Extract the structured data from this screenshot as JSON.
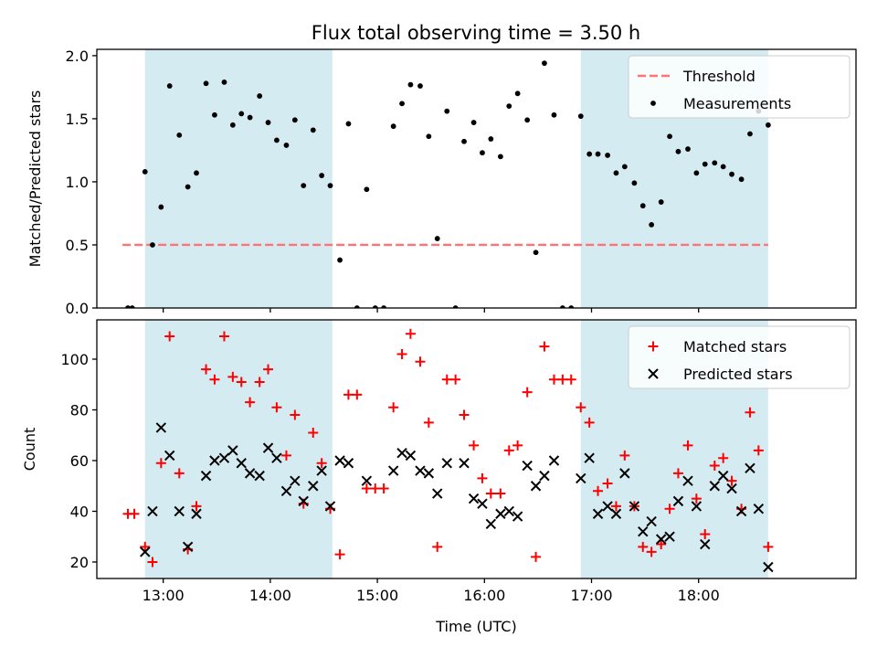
{
  "figure": {
    "title": "Flux total observing time = 3.50 h"
  },
  "chart_data": [
    {
      "type": "scatter",
      "panel": "top",
      "ylabel": "Matched/Predicted stars",
      "xlabel": "",
      "xlim": [
        12.38,
        19.47
      ],
      "ylim": [
        0.0,
        2.05
      ],
      "yticks": [
        0.0,
        0.5,
        1.0,
        1.5,
        2.0
      ],
      "ytick_labels": [
        "0.0",
        "0.5",
        "1.0",
        "1.5",
        "2.0"
      ],
      "xticks": [
        13,
        14,
        15,
        16,
        17,
        18
      ],
      "shaded_intervals": [
        [
          12.83,
          14.58
        ],
        [
          16.9,
          18.65
        ]
      ],
      "shade_color": "#add8e6",
      "legend": {
        "position": "upper right",
        "entries": [
          "Threshold",
          "Measurements"
        ]
      },
      "threshold": {
        "name": "Threshold",
        "y": 0.5,
        "x_range": [
          12.62,
          18.65
        ],
        "color": "#ff7373",
        "style": "dashed"
      },
      "series": [
        {
          "name": "Measurements",
          "color": "#000000",
          "marker": "dot",
          "points": [
            [
              12.67,
              0.0
            ],
            [
              12.71,
              0.0
            ],
            [
              12.83,
              1.08
            ],
            [
              12.9,
              0.5
            ],
            [
              12.98,
              0.8
            ],
            [
              13.06,
              1.76
            ],
            [
              13.15,
              1.37
            ],
            [
              13.23,
              0.96
            ],
            [
              13.31,
              1.07
            ],
            [
              13.4,
              1.78
            ],
            [
              13.48,
              1.53
            ],
            [
              13.57,
              1.79
            ],
            [
              13.65,
              1.45
            ],
            [
              13.73,
              1.54
            ],
            [
              13.81,
              1.51
            ],
            [
              13.9,
              1.68
            ],
            [
              13.98,
              1.47
            ],
            [
              14.06,
              1.33
            ],
            [
              14.15,
              1.29
            ],
            [
              14.23,
              1.49
            ],
            [
              14.31,
              0.97
            ],
            [
              14.4,
              1.41
            ],
            [
              14.48,
              1.05
            ],
            [
              14.56,
              0.97
            ],
            [
              14.65,
              0.38
            ],
            [
              14.73,
              1.46
            ],
            [
              14.81,
              0.0
            ],
            [
              14.9,
              0.94
            ],
            [
              14.98,
              0.0
            ],
            [
              15.06,
              0.0
            ],
            [
              15.15,
              1.44
            ],
            [
              15.23,
              1.62
            ],
            [
              15.31,
              1.77
            ],
            [
              15.4,
              1.76
            ],
            [
              15.48,
              1.36
            ],
            [
              15.56,
              0.55
            ],
            [
              15.65,
              1.56
            ],
            [
              15.73,
              0.0
            ],
            [
              15.81,
              1.32
            ],
            [
              15.9,
              1.47
            ],
            [
              15.98,
              1.23
            ],
            [
              16.06,
              1.34
            ],
            [
              16.15,
              1.2
            ],
            [
              16.23,
              1.6
            ],
            [
              16.31,
              1.7
            ],
            [
              16.4,
              1.49
            ],
            [
              16.48,
              0.44
            ],
            [
              16.56,
              1.94
            ],
            [
              16.65,
              1.53
            ],
            [
              16.73,
              0.0
            ],
            [
              16.81,
              0.0
            ],
            [
              16.9,
              1.52
            ],
            [
              16.98,
              1.22
            ],
            [
              17.06,
              1.22
            ],
            [
              17.15,
              1.21
            ],
            [
              17.23,
              1.07
            ],
            [
              17.31,
              1.12
            ],
            [
              17.4,
              0.99
            ],
            [
              17.48,
              0.81
            ],
            [
              17.56,
              0.66
            ],
            [
              17.65,
              0.84
            ],
            [
              17.73,
              1.36
            ],
            [
              17.81,
              1.24
            ],
            [
              17.9,
              1.26
            ],
            [
              17.98,
              1.07
            ],
            [
              18.06,
              1.14
            ],
            [
              18.15,
              1.15
            ],
            [
              18.23,
              1.12
            ],
            [
              18.31,
              1.06
            ],
            [
              18.4,
              1.02
            ],
            [
              18.48,
              1.38
            ],
            [
              18.56,
              1.56
            ],
            [
              18.65,
              1.45
            ]
          ]
        }
      ]
    },
    {
      "type": "scatter",
      "panel": "bottom",
      "ylabel": "Count",
      "xlabel": "Time (UTC)",
      "xlim": [
        12.38,
        19.47
      ],
      "ylim": [
        13.5,
        115.5
      ],
      "yticks": [
        20,
        40,
        60,
        80,
        100
      ],
      "ytick_labels": [
        "20",
        "40",
        "60",
        "80",
        "100"
      ],
      "xticks": [
        13,
        14,
        15,
        16,
        17,
        18
      ],
      "xtick_labels": [
        "13:00",
        "14:00",
        "15:00",
        "16:00",
        "17:00",
        "18:00"
      ],
      "shaded_intervals": [
        [
          12.83,
          14.58
        ],
        [
          16.9,
          18.65
        ]
      ],
      "shade_color": "#add8e6",
      "legend": {
        "position": "upper right",
        "entries": [
          "Matched stars",
          "Predicted stars"
        ]
      },
      "series": [
        {
          "name": "Matched stars",
          "color": "#ff0000",
          "marker": "plus",
          "points": [
            [
              12.67,
              39
            ],
            [
              12.73,
              39
            ],
            [
              12.83,
              26
            ],
            [
              12.9,
              20
            ],
            [
              12.98,
              59
            ],
            [
              13.06,
              109
            ],
            [
              13.15,
              55
            ],
            [
              13.23,
              25
            ],
            [
              13.31,
              42
            ],
            [
              13.4,
              96
            ],
            [
              13.48,
              92
            ],
            [
              13.57,
              109
            ],
            [
              13.65,
              93
            ],
            [
              13.73,
              91
            ],
            [
              13.81,
              83
            ],
            [
              13.9,
              91
            ],
            [
              13.98,
              96
            ],
            [
              14.06,
              81
            ],
            [
              14.15,
              62
            ],
            [
              14.23,
              78
            ],
            [
              14.31,
              43
            ],
            [
              14.4,
              71
            ],
            [
              14.48,
              59
            ],
            [
              14.56,
              41
            ],
            [
              14.65,
              23
            ],
            [
              14.73,
              86
            ],
            [
              14.81,
              86
            ],
            [
              14.9,
              49
            ],
            [
              14.98,
              49
            ],
            [
              15.06,
              49
            ],
            [
              15.15,
              81
            ],
            [
              15.23,
              102
            ],
            [
              15.31,
              110
            ],
            [
              15.4,
              99
            ],
            [
              15.48,
              75
            ],
            [
              15.56,
              26
            ],
            [
              15.65,
              92
            ],
            [
              15.73,
              92
            ],
            [
              15.81,
              78
            ],
            [
              15.9,
              66
            ],
            [
              15.98,
              53
            ],
            [
              16.06,
              47
            ],
            [
              16.15,
              47
            ],
            [
              16.23,
              64
            ],
            [
              16.31,
              66
            ],
            [
              16.4,
              87
            ],
            [
              16.48,
              22
            ],
            [
              16.56,
              105
            ],
            [
              16.65,
              92
            ],
            [
              16.73,
              92
            ],
            [
              16.81,
              92
            ],
            [
              16.9,
              81
            ],
            [
              16.98,
              75
            ],
            [
              17.06,
              48
            ],
            [
              17.15,
              51
            ],
            [
              17.23,
              42
            ],
            [
              17.31,
              62
            ],
            [
              17.4,
              42
            ],
            [
              17.48,
              26
            ],
            [
              17.56,
              24
            ],
            [
              17.65,
              27
            ],
            [
              17.73,
              41
            ],
            [
              17.81,
              55
            ],
            [
              17.9,
              66
            ],
            [
              17.98,
              45
            ],
            [
              18.06,
              31
            ],
            [
              18.15,
              58
            ],
            [
              18.23,
              61
            ],
            [
              18.31,
              52
            ],
            [
              18.4,
              41
            ],
            [
              18.48,
              79
            ],
            [
              18.56,
              64
            ],
            [
              18.65,
              26
            ]
          ]
        },
        {
          "name": "Predicted stars",
          "color": "#000000",
          "marker": "x",
          "points": [
            [
              12.83,
              24
            ],
            [
              12.9,
              40
            ],
            [
              12.98,
              73
            ],
            [
              13.06,
              62
            ],
            [
              13.15,
              40
            ],
            [
              13.23,
              26
            ],
            [
              13.31,
              39
            ],
            [
              13.4,
              54
            ],
            [
              13.48,
              60
            ],
            [
              13.57,
              61
            ],
            [
              13.65,
              64
            ],
            [
              13.73,
              59
            ],
            [
              13.81,
              55
            ],
            [
              13.9,
              54
            ],
            [
              13.98,
              65
            ],
            [
              14.06,
              61
            ],
            [
              14.15,
              48
            ],
            [
              14.23,
              52
            ],
            [
              14.31,
              44
            ],
            [
              14.4,
              50
            ],
            [
              14.48,
              56
            ],
            [
              14.56,
              42
            ],
            [
              14.65,
              60
            ],
            [
              14.73,
              59
            ],
            [
              14.9,
              52
            ],
            [
              15.15,
              56
            ],
            [
              15.23,
              63
            ],
            [
              15.31,
              62
            ],
            [
              15.4,
              56
            ],
            [
              15.48,
              55
            ],
            [
              15.56,
              47
            ],
            [
              15.65,
              59
            ],
            [
              15.81,
              59
            ],
            [
              15.9,
              45
            ],
            [
              15.98,
              43
            ],
            [
              16.06,
              35
            ],
            [
              16.15,
              39
            ],
            [
              16.23,
              40
            ],
            [
              16.31,
              38
            ],
            [
              16.4,
              58
            ],
            [
              16.48,
              50
            ],
            [
              16.56,
              54
            ],
            [
              16.65,
              60
            ],
            [
              16.9,
              53
            ],
            [
              16.98,
              61
            ],
            [
              17.06,
              39
            ],
            [
              17.15,
              42
            ],
            [
              17.23,
              39
            ],
            [
              17.31,
              55
            ],
            [
              17.4,
              42
            ],
            [
              17.48,
              32
            ],
            [
              17.56,
              36
            ],
            [
              17.65,
              29
            ],
            [
              17.73,
              30
            ],
            [
              17.81,
              44
            ],
            [
              17.9,
              52
            ],
            [
              17.98,
              42
            ],
            [
              18.06,
              27
            ],
            [
              18.15,
              50
            ],
            [
              18.23,
              54
            ],
            [
              18.31,
              49
            ],
            [
              18.4,
              40
            ],
            [
              18.48,
              57
            ],
            [
              18.56,
              41
            ],
            [
              18.65,
              18
            ]
          ]
        }
      ]
    }
  ]
}
